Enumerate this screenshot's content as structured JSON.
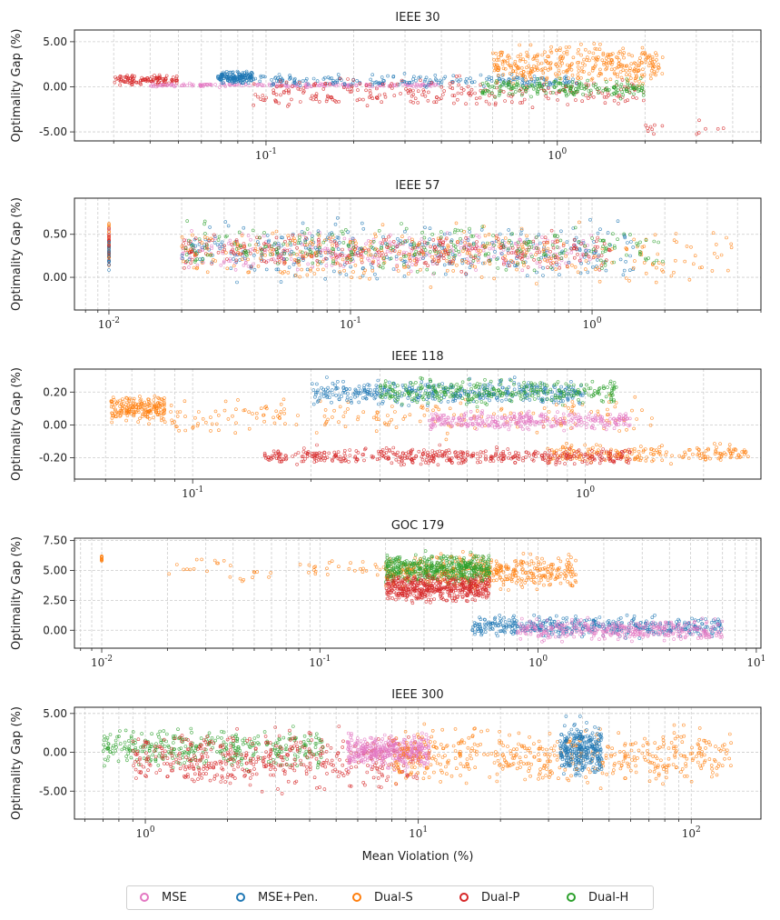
{
  "colors": {
    "MSE": "#e377c2",
    "MSE+Pen.": "#1f77b4",
    "Dual-S": "#ff7f0e",
    "Dual-P": "#d62728",
    "Dual-H": "#2ca02c"
  },
  "legend": {
    "items": [
      "MSE",
      "MSE+Pen.",
      "Dual-S",
      "Dual-P",
      "Dual-H"
    ]
  },
  "chart_data": [
    {
      "type": "scatter",
      "title": "IEEE 30",
      "ylabel": "Optimality Gap (%)",
      "xlabel": "",
      "xscale": "log",
      "xlim": [
        0.022,
        5.0
      ],
      "ylim": [
        -6.0,
        6.3
      ],
      "yticks": [
        -5.0,
        0.0,
        5.0
      ],
      "ytick_labels": [
        "-5.00",
        "0.00",
        "5.00"
      ],
      "xticks": [
        0.1,
        1.0
      ],
      "xtick_labels": [
        "10^-1",
        "10^0"
      ],
      "grid": true,
      "clusters": [
        {
          "series": "Dual-P",
          "x": [
            0.03,
            0.05
          ],
          "y": [
            0.0,
            1.5
          ],
          "n": 120
        },
        {
          "series": "MSE",
          "x": [
            0.04,
            0.4
          ],
          "y": [
            -0.1,
            0.5
          ],
          "n": 200
        },
        {
          "series": "MSE+Pen.",
          "x": [
            0.068,
            0.09
          ],
          "y": [
            0.2,
            1.9
          ],
          "n": 160
        },
        {
          "series": "MSE+Pen.",
          "x": [
            0.09,
            1.2
          ],
          "y": [
            -0.3,
            1.6
          ],
          "n": 200
        },
        {
          "series": "Dual-P",
          "x": [
            0.09,
            2.0
          ],
          "y": [
            -3.0,
            1.5
          ],
          "n": 260
        },
        {
          "series": "Dual-S",
          "x": [
            0.6,
            2.3
          ],
          "y": [
            -0.5,
            5.5
          ],
          "n": 350
        },
        {
          "series": "Dual-H",
          "x": [
            0.55,
            2.0
          ],
          "y": [
            -1.5,
            1.2
          ],
          "n": 200
        },
        {
          "series": "Dual-P",
          "x": [
            2.0,
            4.0
          ],
          "y": [
            -5.5,
            -3.5
          ],
          "n": 14
        }
      ]
    },
    {
      "type": "scatter",
      "title": "IEEE 57",
      "ylabel": "Optimality Gap (%)",
      "xlabel": "",
      "xscale": "log",
      "xlim": [
        0.0072,
        5.0
      ],
      "ylim": [
        -0.38,
        0.92
      ],
      "yticks": [
        0.0,
        0.5
      ],
      "ytick_labels": [
        "0.00",
        "0.50"
      ],
      "xticks": [
        0.01,
        0.1,
        1.0
      ],
      "xtick_labels": [
        "10^-2",
        "10^-1",
        "10^0"
      ],
      "grid": true,
      "clusters": [
        {
          "series": "Dual-S",
          "x": [
            0.01,
            0.01
          ],
          "y": [
            0.0,
            0.7
          ],
          "n": 40
        },
        {
          "series": "Dual-P",
          "x": [
            0.01,
            0.01
          ],
          "y": [
            0.0,
            0.7
          ],
          "n": 20
        },
        {
          "series": "MSE+Pen.",
          "x": [
            0.01,
            0.01
          ],
          "y": [
            0.0,
            0.6
          ],
          "n": 15
        },
        {
          "series": "MSE",
          "x": [
            0.02,
            1.0
          ],
          "y": [
            0.0,
            0.6
          ],
          "n": 300
        },
        {
          "series": "MSE+Pen.",
          "x": [
            0.02,
            1.5
          ],
          "y": [
            -0.15,
            0.75
          ],
          "n": 300
        },
        {
          "series": "Dual-P",
          "x": [
            0.02,
            1.2
          ],
          "y": [
            0.0,
            0.6
          ],
          "n": 300
        },
        {
          "series": "Dual-S",
          "x": [
            0.02,
            3.8
          ],
          "y": [
            -0.2,
            0.7
          ],
          "n": 300
        },
        {
          "series": "Dual-H",
          "x": [
            0.02,
            2.0
          ],
          "y": [
            0.0,
            0.7
          ],
          "n": 260
        }
      ]
    },
    {
      "type": "scatter",
      "title": "IEEE 118",
      "ylabel": "Optimality Gap (%)",
      "xlabel": "",
      "xscale": "log",
      "xlim": [
        0.05,
        2.8
      ],
      "ylim": [
        -0.33,
        0.34
      ],
      "yticks": [
        -0.2,
        0.0,
        0.2
      ],
      "ytick_labels": [
        "-0.20",
        "0.00",
        "0.20"
      ],
      "xticks": [
        0.1,
        1.0
      ],
      "xtick_labels": [
        "10^-1",
        "10^0"
      ],
      "grid": true,
      "clusters": [
        {
          "series": "Dual-S",
          "x": [
            0.062,
            0.085
          ],
          "y": [
            0.0,
            0.2
          ],
          "n": 200
        },
        {
          "series": "Dual-S",
          "x": [
            0.085,
            1.5
          ],
          "y": [
            -0.1,
            0.2
          ],
          "n": 200
        },
        {
          "series": "Dual-S",
          "x": [
            0.8,
            2.6
          ],
          "y": [
            -0.25,
            -0.1
          ],
          "n": 200
        },
        {
          "series": "Dual-P",
          "x": [
            0.15,
            1.3
          ],
          "y": [
            -0.26,
            -0.12
          ],
          "n": 450
        },
        {
          "series": "MSE+Pen.",
          "x": [
            0.2,
            1.0
          ],
          "y": [
            0.1,
            0.3
          ],
          "n": 400
        },
        {
          "series": "Dual-H",
          "x": [
            0.3,
            1.2
          ],
          "y": [
            0.1,
            0.3
          ],
          "n": 300
        },
        {
          "series": "MSE",
          "x": [
            0.4,
            1.3
          ],
          "y": [
            -0.05,
            0.1
          ],
          "n": 320
        }
      ]
    },
    {
      "type": "scatter",
      "title": "GOC 179",
      "ylabel": "Optimality Gap (%)",
      "xlabel": "",
      "xscale": "log",
      "xlim": [
        0.0075,
        10.5
      ],
      "ylim": [
        -1.5,
        7.7
      ],
      "yticks": [
        0.0,
        2.5,
        5.0,
        7.5
      ],
      "ytick_labels": [
        "0.00",
        "2.50",
        "5.00",
        "7.50"
      ],
      "xticks": [
        0.01,
        0.1,
        1.0,
        10.0
      ],
      "xtick_labels": [
        "10^-2",
        "10^-1",
        "10^0",
        "10^1"
      ],
      "grid": true,
      "clusters": [
        {
          "series": "Dual-S",
          "x": [
            0.01,
            0.01
          ],
          "y": [
            5.5,
            6.5
          ],
          "n": 12
        },
        {
          "series": "Dual-S",
          "x": [
            0.02,
            0.2
          ],
          "y": [
            4.0,
            6.5
          ],
          "n": 50
        },
        {
          "series": "Dual-S",
          "x": [
            0.2,
            1.5
          ],
          "y": [
            3.0,
            6.8
          ],
          "n": 450
        },
        {
          "series": "Dual-H",
          "x": [
            0.2,
            0.6
          ],
          "y": [
            3.5,
            6.8
          ],
          "n": 450
        },
        {
          "series": "Dual-P",
          "x": [
            0.2,
            0.6
          ],
          "y": [
            2.0,
            5.0
          ],
          "n": 450
        },
        {
          "series": "MSE+Pen.",
          "x": [
            0.5,
            7.0
          ],
          "y": [
            -0.8,
            1.5
          ],
          "n": 450
        },
        {
          "series": "MSE",
          "x": [
            0.8,
            7.0
          ],
          "y": [
            -1.2,
            1.2
          ],
          "n": 350
        }
      ]
    },
    {
      "type": "scatter",
      "title": "IEEE 300",
      "ylabel": "Optimality Gap (%)",
      "xlabel": "Mean Violation (%)",
      "xscale": "log",
      "xlim": [
        0.55,
        180
      ],
      "ylim": [
        -8.6,
        5.8
      ],
      "yticks": [
        -5.0,
        0.0,
        5.0
      ],
      "ytick_labels": [
        "-5.00",
        "0.00",
        "5.00"
      ],
      "xticks": [
        1,
        10,
        100
      ],
      "xtick_labels": [
        "10^0",
        "10^1",
        "10^2"
      ],
      "grid": true,
      "clusters": [
        {
          "series": "Dual-H",
          "x": [
            0.7,
            4.5
          ],
          "y": [
            -3.0,
            4.0
          ],
          "n": 350
        },
        {
          "series": "Dual-P",
          "x": [
            0.9,
            10.0
          ],
          "y": [
            -6.0,
            4.0
          ],
          "n": 450
        },
        {
          "series": "MSE",
          "x": [
            5.5,
            11.0
          ],
          "y": [
            -2.5,
            2.8
          ],
          "n": 400
        },
        {
          "series": "Dual-S",
          "x": [
            8.0,
            140
          ],
          "y": [
            -5.5,
            4.5
          ],
          "n": 500
        },
        {
          "series": "MSE+Pen.",
          "x": [
            33.0,
            47.0
          ],
          "y": [
            -4.0,
            4.8
          ],
          "n": 300
        }
      ]
    }
  ]
}
